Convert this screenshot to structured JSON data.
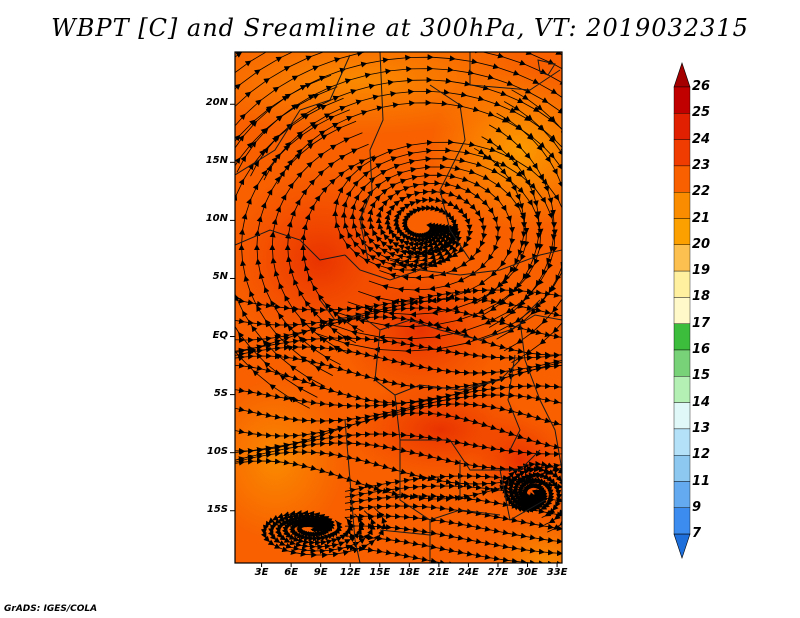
{
  "title": "WBPT [C] and Sreamline at 300hPa, VT: 2019032315",
  "footer": "GrADS: IGES/COLA",
  "map": {
    "lat_labels": [
      "20N",
      "15N",
      "10N",
      "5N",
      "EQ",
      "5S",
      "10S",
      "15S"
    ],
    "lon_labels": [
      "3E",
      "6E",
      "9E",
      "12E",
      "15E",
      "18E",
      "21E",
      "24E",
      "27E",
      "30E",
      "33E"
    ],
    "lat_range": [
      -19.5,
      24.5
    ],
    "lon_range": [
      0.3,
      33.5
    ],
    "vortices": [
      {
        "name": "cyclonic-center-sahel",
        "lon": 19.5,
        "lat": 9.5
      },
      {
        "name": "center-mozambique",
        "lon": 30.5,
        "lat": -13.5
      },
      {
        "name": "anticyclone-southwest",
        "lon": 8.0,
        "lat": -16.5
      }
    ]
  },
  "colorbar": {
    "levels": [
      "26",
      "25",
      "24",
      "23",
      "22",
      "21",
      "20",
      "19",
      "18",
      "17",
      "16",
      "15",
      "14",
      "13",
      "12",
      "11",
      "9",
      "7"
    ],
    "colors": {
      "top_arrow": "#a50000",
      "seg_25_26": "#c00000",
      "seg_24_25": "#e02000",
      "seg_23_24": "#f03c00",
      "seg_22_23": "#f86000",
      "seg_21_22": "#fa8c00",
      "seg_20_21": "#fca000",
      "seg_19_20": "#fcc050",
      "seg_18_19": "#fff0a0",
      "seg_17_18": "#fff8c8",
      "seg_16_17": "#3cbe3c",
      "seg_15_16": "#78d278",
      "seg_14_15": "#b4f0b4",
      "seg_13_14": "#e0f8f8",
      "seg_12_13": "#b4e0f8",
      "seg_11_12": "#8cc8f0",
      "seg_9_11": "#64aaf0",
      "seg_7_9": "#3c8cf0",
      "bottom_arrow": "#1e6edc"
    }
  },
  "field_colors": {
    "background": "#f86000",
    "warm_core": "#f03c00",
    "cool_north": "#fa8c00",
    "cool_edge": "#fca000"
  }
}
